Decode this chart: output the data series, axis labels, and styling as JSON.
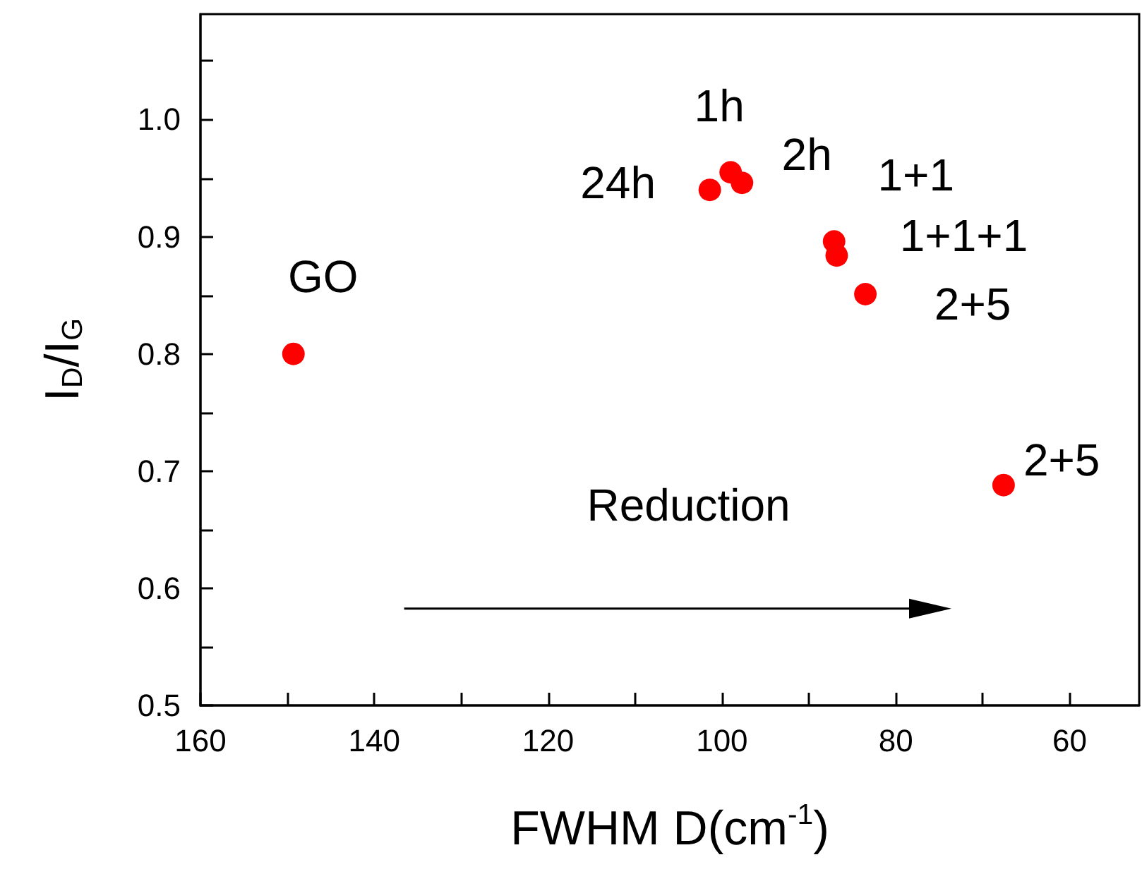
{
  "chart_data": {
    "type": "scatter",
    "xlabel": "FWHM D(cm$^{-1}$)",
    "ylabel": "I$_{D}$/I$_{G}$",
    "x": [
      149.3,
      101.4,
      99.0,
      97.7,
      87.1,
      86.8,
      83.5,
      67.6
    ],
    "series": [
      {
        "color": "#ff0000",
        "values": [
          0.8,
          0.94,
          0.955,
          0.946,
          0.896,
          0.884,
          0.851,
          0.688
        ]
      }
    ],
    "xlim": [
      160,
      52
    ],
    "ylim": [
      0.5,
      1.09
    ],
    "xticks": [
      160,
      {
        "value": 150,
        "label": null
      },
      140,
      {
        "value": 130,
        "label": null
      },
      120,
      {
        "value": 110,
        "label": null
      },
      100,
      {
        "value": 90,
        "label": null
      },
      80,
      {
        "value": 70,
        "label": null
      },
      60
    ],
    "yticks": [
      0.5,
      {
        "value": 0.55,
        "label": null
      },
      0.6,
      {
        "value": 0.65,
        "label": null
      },
      0.7,
      {
        "value": 0.75,
        "label": null
      },
      0.8,
      {
        "value": 0.85,
        "label": null
      },
      0.9,
      {
        "value": 0.95,
        "label": null
      },
      {
        "value": 1.0,
        "label": "1.0"
      },
      {
        "value": 1.05,
        "label": null
      }
    ],
    "marker": "circle",
    "grid": false,
    "annotations": [
      {
        "text": "GO",
        "x": 149.3,
        "y": 0.8
      },
      {
        "text": "24h",
        "x": 101.4,
        "y": 0.94
      },
      {
        "text": "1h",
        "x": 99.0,
        "y": 0.955
      },
      {
        "text": "2h",
        "x": 97.7,
        "y": 0.946
      },
      {
        "text": "1+1",
        "x": 87.1,
        "y": 0.896
      },
      {
        "text": "1+1+1",
        "x": 86.8,
        "y": 0.884
      },
      {
        "text": "2+5",
        "x": 83.5,
        "y": 0.851
      },
      {
        "text": "2+5",
        "x": 67.6,
        "y": 0.688
      },
      "Reduction"
    ]
  }
}
